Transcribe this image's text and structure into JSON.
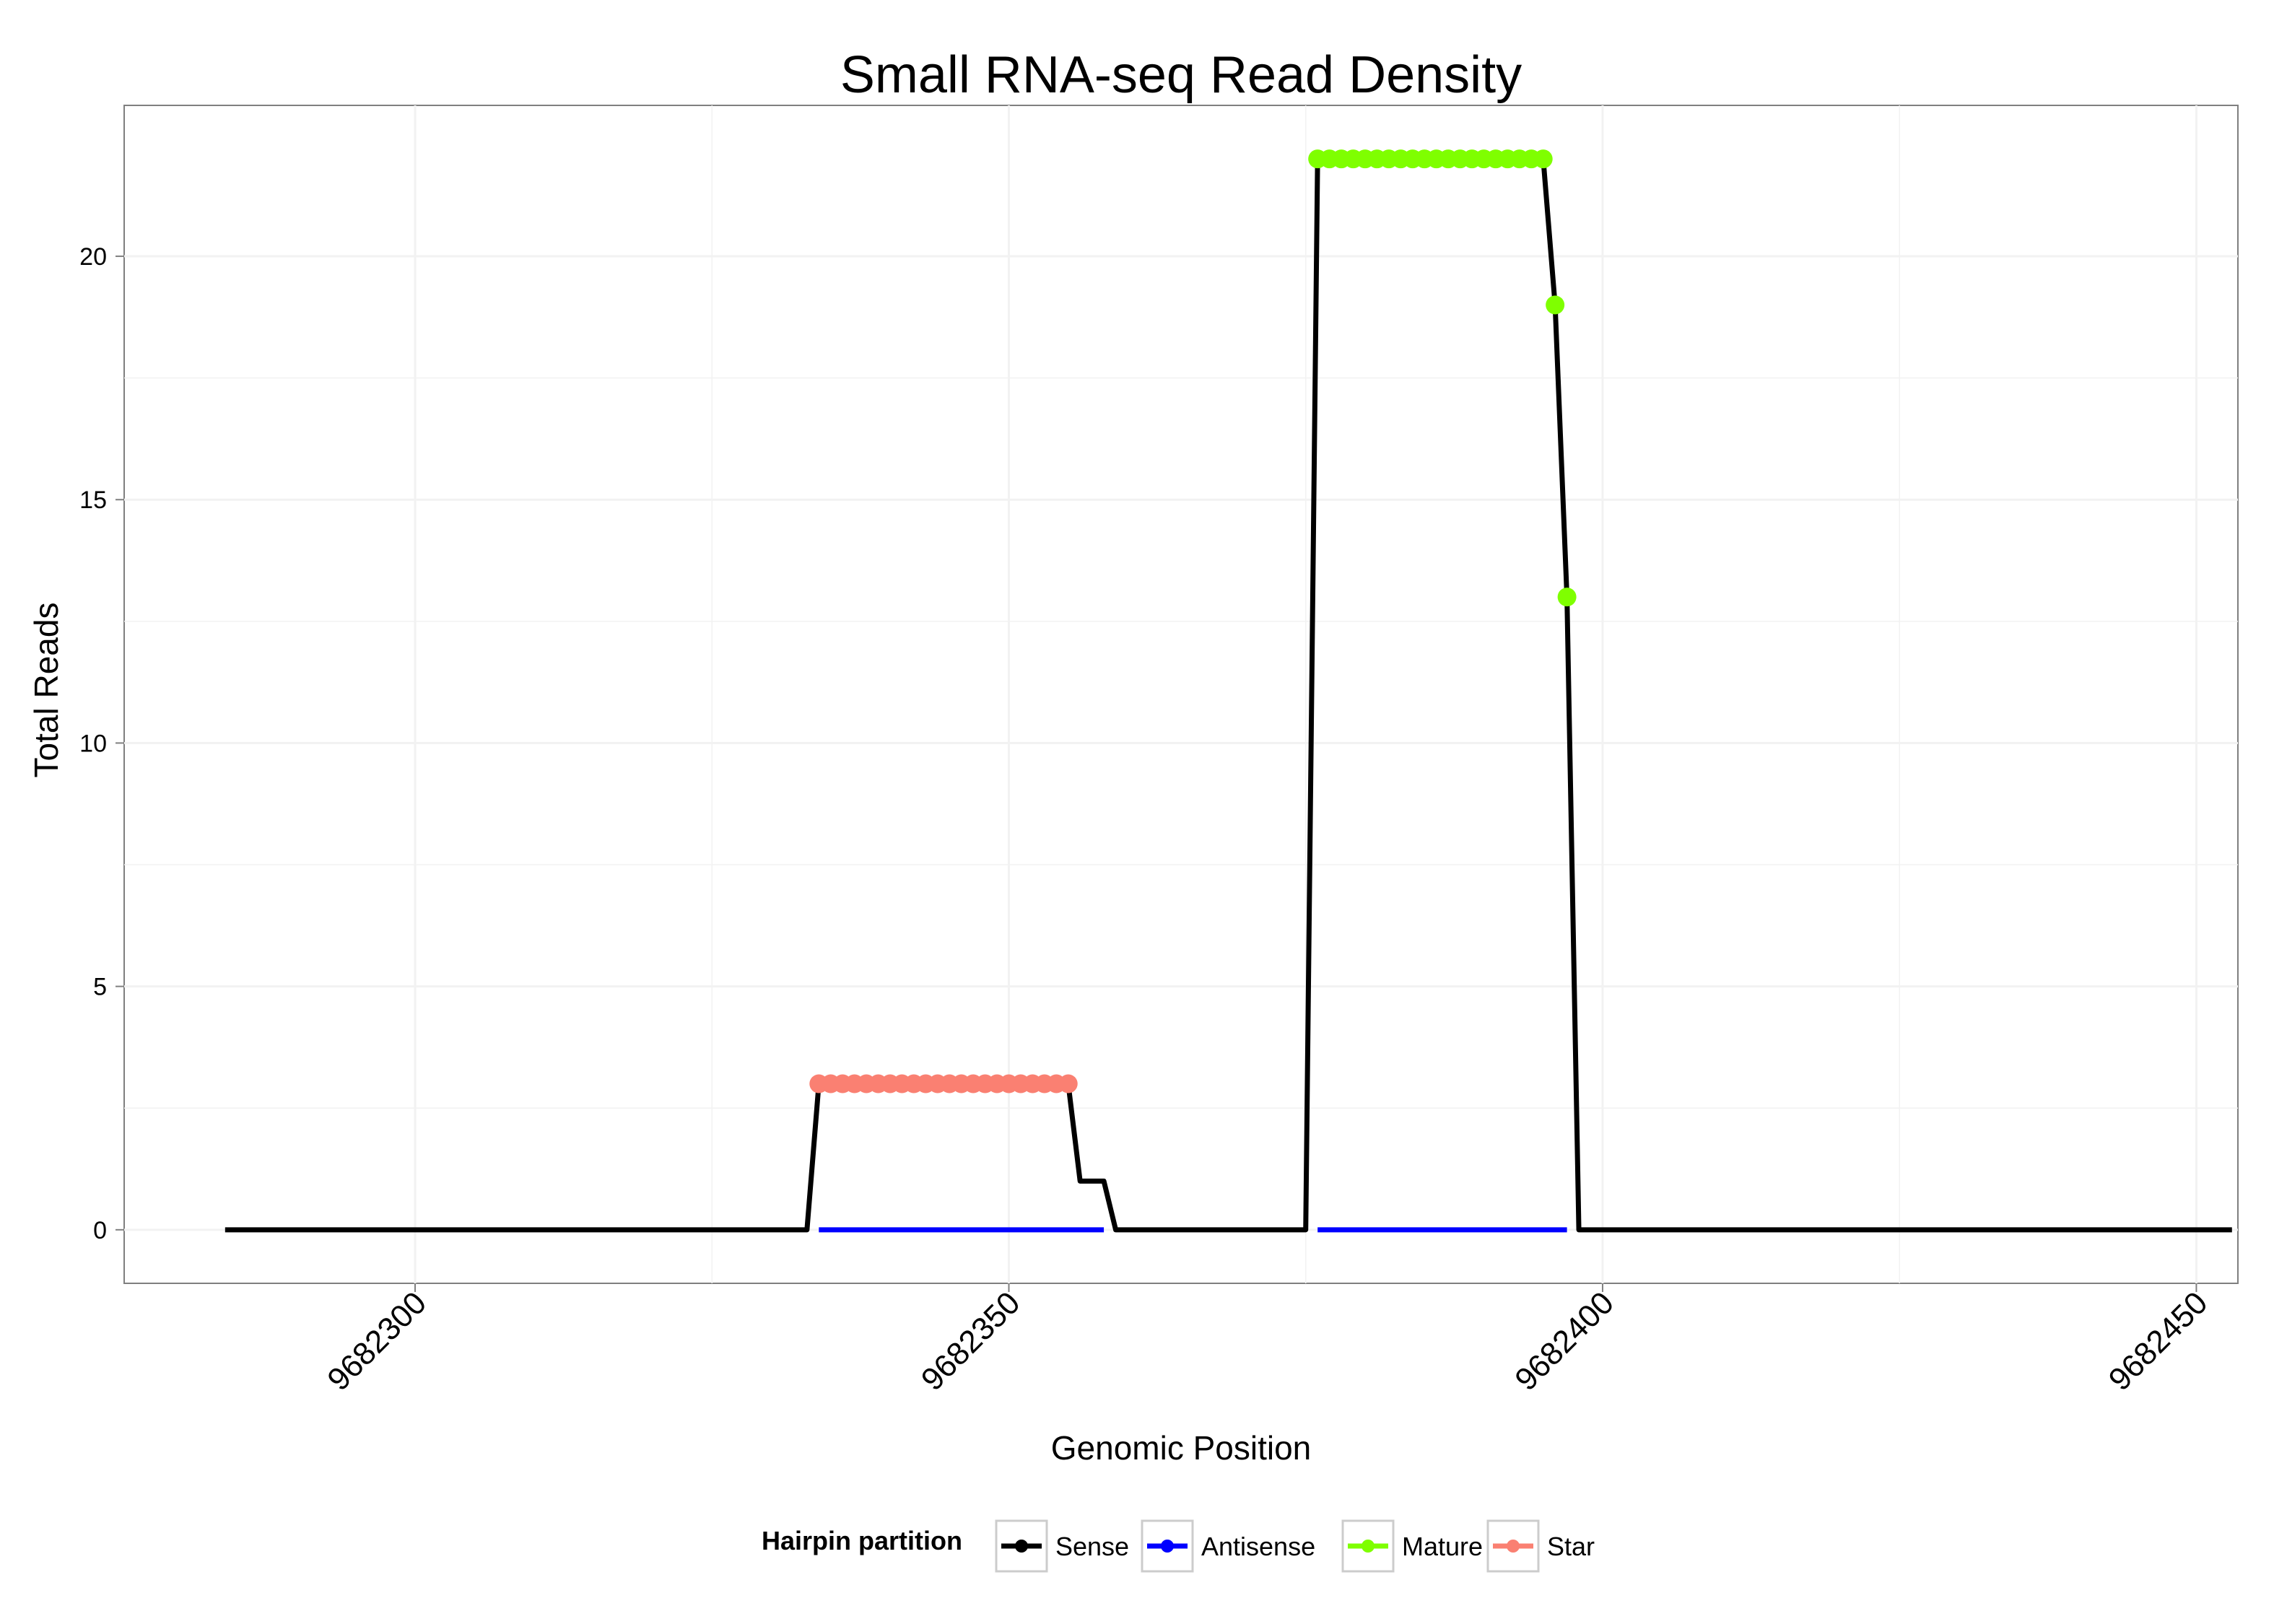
{
  "chart_data": {
    "type": "line",
    "title": "Small RNA-seq Read Density",
    "xlabel": "Genomic Position",
    "ylabel": "Total Reads",
    "xlim": [
      9682275.5,
      9682453.5
    ],
    "ylim": [
      -1.1,
      23.1
    ],
    "xticks": [
      9682300,
      9682350,
      9682400,
      9682450
    ],
    "xtick_labels": [
      "9682300",
      "9682350",
      "9682400",
      "9682450"
    ],
    "yticks": [
      0,
      5,
      10,
      15,
      20
    ],
    "ytick_labels": [
      "0",
      "5",
      "10",
      "15",
      "20"
    ],
    "grid": true,
    "legend": {
      "title": "Hairpin partition",
      "placement": "bottom",
      "entries": [
        {
          "label": "Sense",
          "color": "#000000"
        },
        {
          "label": "Antisense",
          "color": "#0000FF"
        },
        {
          "label": "Mature",
          "color": "#7FFF00"
        },
        {
          "label": "Star",
          "color": "#FA8072"
        }
      ]
    },
    "series": [
      {
        "name": "Sense",
        "color": "#000000",
        "style": "line",
        "x": [
          9682284,
          9682333,
          9682334,
          9682355,
          9682356,
          9682357,
          9682358,
          9682359,
          9682375,
          9682376,
          9682395,
          9682396,
          9682397,
          9682398,
          9682453
        ],
        "y": [
          0,
          0,
          3,
          3,
          1,
          1,
          1,
          0,
          0,
          22,
          22,
          19,
          13,
          0,
          0
        ]
      },
      {
        "name": "Antisense",
        "color": "#0000FF",
        "style": "line",
        "segments": [
          {
            "x": [
              9682334,
              9682358
            ],
            "y": [
              0,
              0
            ]
          },
          {
            "x": [
              9682376,
              9682397
            ],
            "y": [
              0,
              0
            ]
          }
        ]
      },
      {
        "name": "Mature",
        "color": "#7FFF00",
        "style": "points",
        "x": [
          9682376,
          9682377,
          9682378,
          9682379,
          9682380,
          9682381,
          9682382,
          9682383,
          9682384,
          9682385,
          9682386,
          9682387,
          9682388,
          9682389,
          9682390,
          9682391,
          9682392,
          9682393,
          9682394,
          9682395,
          9682396,
          9682397
        ],
        "y": [
          22,
          22,
          22,
          22,
          22,
          22,
          22,
          22,
          22,
          22,
          22,
          22,
          22,
          22,
          22,
          22,
          22,
          22,
          22,
          22,
          19,
          13
        ]
      },
      {
        "name": "Star",
        "color": "#FA8072",
        "style": "points",
        "x": [
          9682334,
          9682335,
          9682336,
          9682337,
          9682338,
          9682339,
          9682340,
          9682341,
          9682342,
          9682343,
          9682344,
          9682345,
          9682346,
          9682347,
          9682348,
          9682349,
          9682350,
          9682351,
          9682352,
          9682353,
          9682354,
          9682355
        ],
        "y": [
          3,
          3,
          3,
          3,
          3,
          3,
          3,
          3,
          3,
          3,
          3,
          3,
          3,
          3,
          3,
          3,
          3,
          3,
          3,
          3,
          3,
          3
        ]
      }
    ]
  }
}
